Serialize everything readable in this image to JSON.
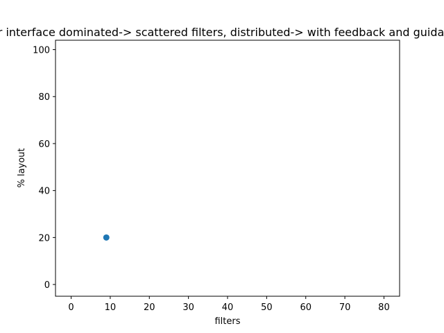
{
  "chart_data": {
    "type": "scatter",
    "title": "er interface dominated-> scattered filters, distributed-> with feedback and guidance",
    "xlabel": "filters",
    "ylabel": "% layout",
    "xlim": [
      -4,
      84
    ],
    "ylim": [
      -5,
      104
    ],
    "xticks": [
      0,
      10,
      20,
      30,
      40,
      50,
      60,
      70,
      80
    ],
    "yticks": [
      0,
      20,
      40,
      60,
      80,
      100
    ],
    "grid": false,
    "series": [
      {
        "color": "#1f77b4",
        "points": [
          {
            "x": 9,
            "y": 20
          }
        ]
      }
    ]
  }
}
